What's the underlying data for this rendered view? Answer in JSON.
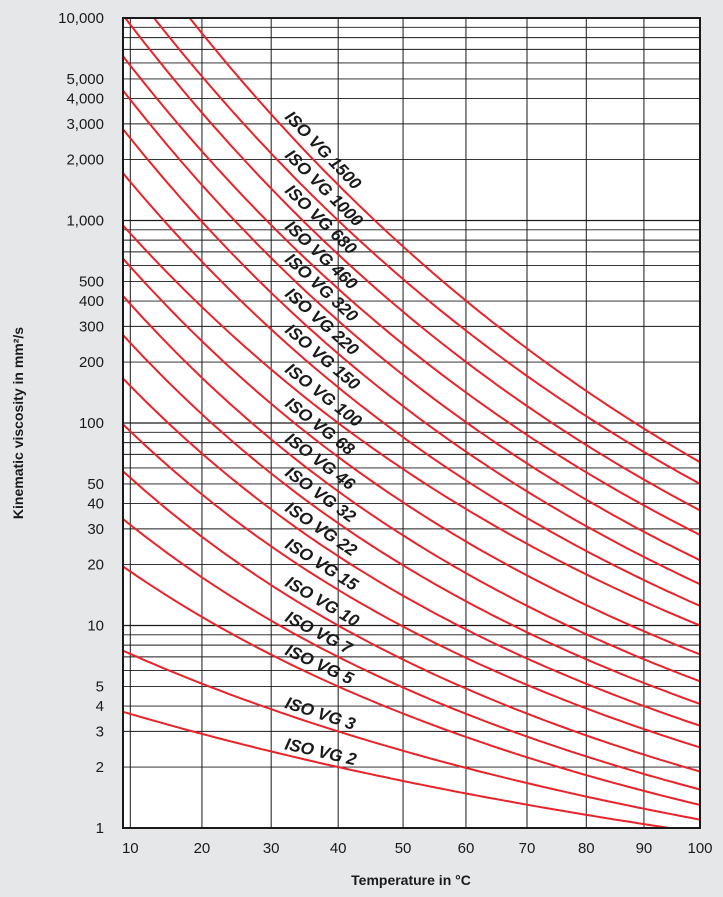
{
  "chart_data": {
    "type": "line",
    "xlabel": "Temperature in °C",
    "ylabel": "Kinematic viscosity in mm²/s",
    "x_scale": "log-log (viscosity–temperature chart)",
    "y_scale": "log",
    "xlim": [
      9,
      100
    ],
    "ylim": [
      1,
      10000
    ],
    "grid": true,
    "line_color": "#e8232a",
    "grid_color": "#1a1a1a",
    "background_color": "#e6e7e9",
    "plot_background_color": "#ffffff",
    "x_ticks": [
      {
        "value": 10,
        "label": "10"
      },
      {
        "value": 20,
        "label": "20"
      },
      {
        "value": 30,
        "label": "30"
      },
      {
        "value": 40,
        "label": "40"
      },
      {
        "value": 50,
        "label": "50"
      },
      {
        "value": 60,
        "label": "60"
      },
      {
        "value": 70,
        "label": "70"
      },
      {
        "value": 80,
        "label": "80"
      },
      {
        "value": 90,
        "label": "90"
      },
      {
        "value": 100,
        "label": "100"
      }
    ],
    "y_ticks": [
      {
        "value": 1,
        "label": "1"
      },
      {
        "value": 2,
        "label": "2"
      },
      {
        "value": 3,
        "label": "3"
      },
      {
        "value": 4,
        "label": "4"
      },
      {
        "value": 5,
        "label": "5"
      },
      {
        "value": 10,
        "label": "10"
      },
      {
        "value": 20,
        "label": "20"
      },
      {
        "value": 30,
        "label": "30"
      },
      {
        "value": 40,
        "label": "40"
      },
      {
        "value": 50,
        "label": "50"
      },
      {
        "value": 100,
        "label": "100"
      },
      {
        "value": 200,
        "label": "200"
      },
      {
        "value": 300,
        "label": "300"
      },
      {
        "value": 400,
        "label": "400"
      },
      {
        "value": 500,
        "label": "500"
      },
      {
        "value": 1000,
        "label": "1,000"
      },
      {
        "value": 2000,
        "label": "2,000"
      },
      {
        "value": 3000,
        "label": "3,000"
      },
      {
        "value": 4000,
        "label": "4,000"
      },
      {
        "value": 5000,
        "label": "5,000"
      },
      {
        "value": 10000,
        "label": "10,000"
      }
    ],
    "series": [
      {
        "name": "ISO VG 1500",
        "points": [
          [
            40,
            1500
          ],
          [
            100,
            64
          ]
        ]
      },
      {
        "name": "ISO VG 1000",
        "points": [
          [
            40,
            1000
          ],
          [
            100,
            50
          ]
        ]
      },
      {
        "name": "ISO VG 680",
        "points": [
          [
            40,
            680
          ],
          [
            100,
            37
          ]
        ]
      },
      {
        "name": "ISO VG 460",
        "points": [
          [
            40,
            460
          ],
          [
            100,
            28
          ]
        ]
      },
      {
        "name": "ISO VG 320",
        "points": [
          [
            40,
            320
          ],
          [
            100,
            21
          ]
        ]
      },
      {
        "name": "ISO VG 220",
        "points": [
          [
            40,
            220
          ],
          [
            100,
            16
          ]
        ]
      },
      {
        "name": "ISO VG 150",
        "points": [
          [
            40,
            150
          ],
          [
            100,
            12.5
          ]
        ]
      },
      {
        "name": "ISO VG 100",
        "points": [
          [
            40,
            100
          ],
          [
            100,
            10
          ]
        ]
      },
      {
        "name": "ISO VG 68",
        "points": [
          [
            40,
            68
          ],
          [
            100,
            7.2
          ]
        ]
      },
      {
        "name": "ISO VG 46",
        "points": [
          [
            40,
            46
          ],
          [
            100,
            5.3
          ]
        ]
      },
      {
        "name": "ISO VG 32",
        "points": [
          [
            40,
            32
          ],
          [
            100,
            4.1
          ]
        ]
      },
      {
        "name": "ISO VG 22",
        "points": [
          [
            40,
            22
          ],
          [
            100,
            3.2
          ]
        ]
      },
      {
        "name": "ISO VG 15",
        "points": [
          [
            40,
            15
          ],
          [
            100,
            2.5
          ]
        ]
      },
      {
        "name": "ISO VG 10",
        "points": [
          [
            40,
            10
          ],
          [
            100,
            1.9
          ]
        ]
      },
      {
        "name": "ISO VG 7",
        "points": [
          [
            40,
            7
          ],
          [
            100,
            1.55
          ]
        ]
      },
      {
        "name": "ISO VG 5",
        "points": [
          [
            40,
            5
          ],
          [
            100,
            1.3
          ]
        ]
      },
      {
        "name": "ISO VG 3",
        "points": [
          [
            40,
            3
          ],
          [
            100,
            1.1
          ]
        ]
      },
      {
        "name": "ISO VG 2",
        "points": [
          [
            40,
            2
          ],
          [
            100,
            0.95
          ]
        ]
      }
    ]
  }
}
